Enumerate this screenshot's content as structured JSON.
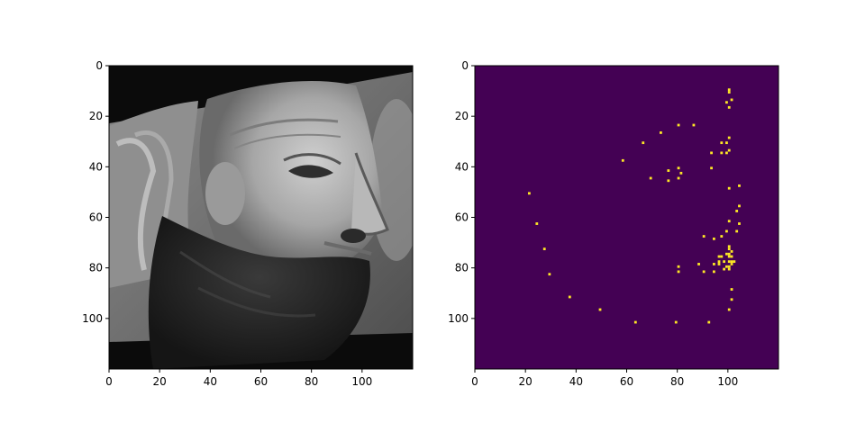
{
  "chart_data": [
    {
      "type": "heatmap",
      "content": "photograph",
      "subject": "grayscale face close-up",
      "colormap": "gray",
      "x_range": [
        0,
        120
      ],
      "y_range": [
        0,
        120
      ],
      "y_inverted": true,
      "xticks": [
        "0",
        "20",
        "40",
        "60",
        "80",
        "100"
      ],
      "yticks": [
        "0",
        "20",
        "40",
        "60",
        "80",
        "100"
      ]
    },
    {
      "type": "heatmap",
      "colormap": "viridis",
      "background_color": "#440154",
      "marker_color": "#fde725",
      "x_range": [
        0,
        120
      ],
      "y_range": [
        0,
        120
      ],
      "y_inverted": true,
      "xticks": [
        "0",
        "20",
        "40",
        "60",
        "80",
        "100"
      ],
      "yticks": [
        "0",
        "20",
        "40",
        "60",
        "80",
        "100"
      ],
      "points": [
        [
          100,
          9
        ],
        [
          100,
          10
        ],
        [
          101,
          13
        ],
        [
          99,
          14
        ],
        [
          100,
          16
        ],
        [
          80,
          23
        ],
        [
          86,
          23
        ],
        [
          73,
          26
        ],
        [
          66,
          30
        ],
        [
          97,
          30
        ],
        [
          99,
          30
        ],
        [
          100,
          28
        ],
        [
          100,
          33
        ],
        [
          99,
          34
        ],
        [
          93,
          34
        ],
        [
          97,
          34
        ],
        [
          58,
          37
        ],
        [
          76,
          41
        ],
        [
          80,
          40
        ],
        [
          81,
          42
        ],
        [
          93,
          40
        ],
        [
          69,
          44
        ],
        [
          76,
          45
        ],
        [
          80,
          44
        ],
        [
          100,
          48
        ],
        [
          104,
          47
        ],
        [
          21,
          50
        ],
        [
          104,
          55
        ],
        [
          103,
          57
        ],
        [
          100,
          61
        ],
        [
          104,
          62
        ],
        [
          24,
          62
        ],
        [
          99,
          65
        ],
        [
          103,
          65
        ],
        [
          90,
          67
        ],
        [
          97,
          67
        ],
        [
          94,
          68
        ],
        [
          27,
          72
        ],
        [
          100,
          71
        ],
        [
          100,
          72
        ],
        [
          101,
          73
        ],
        [
          100,
          75
        ],
        [
          96,
          75
        ],
        [
          97,
          75
        ],
        [
          99,
          74
        ],
        [
          100,
          74
        ],
        [
          101,
          75
        ],
        [
          96,
          77
        ],
        [
          98,
          77
        ],
        [
          100,
          77
        ],
        [
          101,
          77
        ],
        [
          102,
          77
        ],
        [
          88,
          78
        ],
        [
          94,
          78
        ],
        [
          96,
          78
        ],
        [
          99,
          79
        ],
        [
          100,
          79
        ],
        [
          101,
          78
        ],
        [
          80,
          79
        ],
        [
          80,
          81
        ],
        [
          90,
          81
        ],
        [
          94,
          81
        ],
        [
          98,
          80
        ],
        [
          100,
          80
        ],
        [
          29,
          82
        ],
        [
          101,
          88
        ],
        [
          37,
          91
        ],
        [
          101,
          92
        ],
        [
          49,
          96
        ],
        [
          100,
          96
        ],
        [
          63,
          101
        ],
        [
          79,
          101
        ],
        [
          92,
          101
        ]
      ]
    }
  ]
}
